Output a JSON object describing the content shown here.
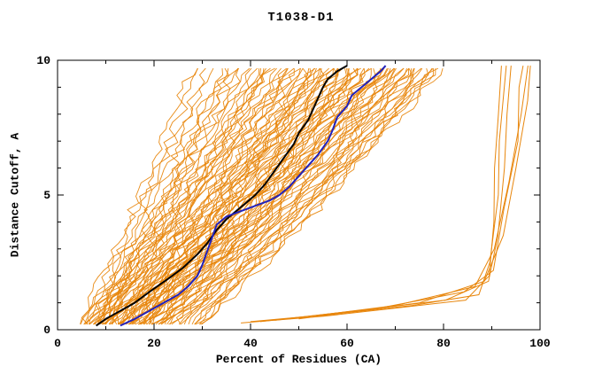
{
  "chart_data": {
    "type": "line",
    "title": "T1038-D1",
    "xlabel": "Percent of Residues (CA)",
    "ylabel": "Distance Cutoff, A",
    "xlim": [
      0,
      100
    ],
    "ylim": [
      0,
      10
    ],
    "x_major_ticks": [
      0,
      20,
      40,
      60,
      80,
      100
    ],
    "x_minor_step": 10,
    "y_major_ticks": [
      0,
      5,
      10
    ],
    "y_minor_step": 1,
    "grid": false,
    "legend": "none",
    "colors": {
      "ensemble": "#e8860c",
      "model_black": "#000000",
      "model_blue": "#2222bb"
    },
    "ensemble": {
      "name": "prediction-ensemble",
      "anchor_y": [
        0.2,
        2,
        4,
        6,
        8,
        9.8
      ],
      "curves": [
        [
          5,
          9.8,
          15.1,
          19.9,
          24.7,
          29
        ],
        [
          6,
          11.2,
          16.9,
          22.1,
          27.3,
          32
        ],
        [
          6,
          11.8,
          18.2,
          24,
          29.8,
          35
        ],
        [
          7,
          13.2,
          20,
          26.2,
          32.4,
          38
        ],
        [
          7,
          13.6,
          20.9,
          27.5,
          34.1,
          40
        ],
        [
          8,
          13.6,
          19.8,
          25.4,
          31,
          36
        ],
        [
          8,
          14.8,
          22.3,
          29.1,
          35.9,
          42
        ],
        [
          8,
          15.2,
          23.1,
          30.3,
          37.5,
          44
        ],
        [
          9,
          16.2,
          24.1,
          31.3,
          38.5,
          45
        ],
        [
          9,
          16.6,
          25,
          32.6,
          40.2,
          47
        ],
        [
          10,
          16.6,
          23.9,
          30.5,
          37.1,
          43
        ],
        [
          10,
          17.6,
          26,
          33.6,
          41.2,
          48
        ],
        [
          10,
          18,
          26.8,
          34.8,
          42.8,
          50
        ],
        [
          11,
          19.2,
          28.2,
          36.4,
          44.6,
          52
        ],
        [
          11,
          19.4,
          28.6,
          37,
          45.4,
          53
        ],
        [
          12,
          20.4,
          29.6,
          38,
          46.4,
          54
        ],
        [
          12,
          20.6,
          30.1,
          38.7,
          47.3,
          55
        ],
        [
          13,
          20.2,
          28.1,
          35.3,
          42.5,
          49
        ],
        [
          13,
          21.6,
          31.1,
          39.7,
          48.3,
          56
        ],
        [
          13,
          21.8,
          31.5,
          40.3,
          49.1,
          57
        ],
        [
          14,
          22.8,
          32.5,
          41.3,
          50.1,
          58
        ],
        [
          14,
          23,
          32.9,
          41.9,
          50.9,
          59
        ],
        [
          15,
          24,
          33.9,
          42.9,
          51.9,
          60
        ],
        [
          15,
          24.2,
          34.3,
          43.5,
          52.7,
          61
        ],
        [
          16,
          23.6,
          32,
          39.6,
          47.2,
          54
        ],
        [
          16,
          25.2,
          35.3,
          44.5,
          53.7,
          62
        ],
        [
          16,
          25.4,
          35.7,
          45.1,
          54.5,
          63
        ],
        [
          17,
          26.4,
          36.7,
          46.1,
          55.5,
          64
        ],
        [
          17,
          26.6,
          37.2,
          46.8,
          56.4,
          65
        ],
        [
          18,
          27.6,
          38.2,
          47.8,
          57.4,
          66
        ],
        [
          18,
          27.8,
          38.6,
          48.4,
          58.2,
          67
        ],
        [
          19,
          27.6,
          37.1,
          45.7,
          54.3,
          62
        ],
        [
          19,
          28.8,
          39.6,
          49.4,
          59.2,
          68
        ],
        [
          20,
          29.8,
          40.6,
          50.4,
          60.2,
          69
        ],
        [
          20,
          30,
          41,
          51,
          61,
          70
        ],
        [
          21,
          31,
          42,
          52,
          62,
          71
        ],
        [
          22,
          31.2,
          41.3,
          50.5,
          59.7,
          68
        ],
        [
          22,
          32,
          43,
          53,
          63,
          72
        ],
        [
          23,
          33,
          44,
          54,
          64,
          73
        ],
        [
          24,
          34,
          45,
          55,
          65,
          74
        ],
        [
          25,
          35,
          46,
          56,
          66,
          75
        ],
        [
          26,
          36,
          47,
          57,
          67,
          76
        ],
        [
          27,
          37,
          48,
          58,
          68,
          77
        ],
        [
          28,
          38,
          49,
          59,
          69,
          78
        ],
        [
          29,
          39,
          50,
          60,
          70,
          79
        ],
        [
          30,
          40,
          51,
          61,
          71,
          80
        ]
      ],
      "outlier_curves": [
        [
          [
            38,
            0.25
          ],
          [
            55,
            0.5
          ],
          [
            70,
            0.8
          ],
          [
            85,
            1.1
          ],
          [
            89,
            2
          ],
          [
            90,
            4
          ],
          [
            91,
            6
          ],
          [
            91.5,
            8
          ],
          [
            92,
            9.8
          ]
        ],
        [
          [
            40,
            0.3
          ],
          [
            58,
            0.6
          ],
          [
            74,
            0.9
          ],
          [
            87,
            1.3
          ],
          [
            90,
            2.5
          ],
          [
            91,
            5
          ],
          [
            92,
            7
          ],
          [
            93,
            9.8
          ]
        ],
        [
          [
            42,
            0.3
          ],
          [
            62,
            0.7
          ],
          [
            80,
            1.1
          ],
          [
            89,
            1.8
          ],
          [
            91,
            3.5
          ],
          [
            92.5,
            6
          ],
          [
            93.5,
            8
          ],
          [
            94,
            9.8
          ]
        ],
        [
          [
            45,
            0.35
          ],
          [
            66,
            0.8
          ],
          [
            84,
            1.4
          ],
          [
            90,
            2.2
          ],
          [
            93,
            4.5
          ],
          [
            95,
            7
          ],
          [
            96,
            9
          ],
          [
            96.5,
            9.8
          ]
        ],
        [
          [
            48,
            0.4
          ],
          [
            70,
            0.9
          ],
          [
            87,
            1.6
          ],
          [
            91,
            3
          ],
          [
            94,
            5.5
          ],
          [
            96,
            8
          ],
          [
            97.5,
            9.8
          ]
        ],
        [
          [
            50,
            0.4
          ],
          [
            75,
            1
          ],
          [
            88,
            1.8
          ],
          [
            92,
            3.5
          ],
          [
            95,
            6
          ],
          [
            97,
            8.5
          ],
          [
            98,
            9.8
          ]
        ]
      ]
    },
    "series": [
      {
        "name": "highlighted-model-black",
        "color": "#000000",
        "points": [
          [
            8,
            0.15
          ],
          [
            10,
            0.4
          ],
          [
            13,
            0.7
          ],
          [
            16,
            1.0
          ],
          [
            19,
            1.4
          ],
          [
            23,
            1.9
          ],
          [
            26,
            2.3
          ],
          [
            29,
            2.8
          ],
          [
            31,
            3.2
          ],
          [
            33,
            3.7
          ],
          [
            35,
            4.1
          ],
          [
            37,
            4.4
          ],
          [
            39,
            4.7
          ],
          [
            41,
            5.0
          ],
          [
            43,
            5.4
          ],
          [
            45,
            5.9
          ],
          [
            47,
            6.4
          ],
          [
            49,
            6.9
          ],
          [
            50,
            7.3
          ],
          [
            52,
            7.8
          ],
          [
            53,
            8.2
          ],
          [
            54,
            8.6
          ],
          [
            55,
            9.0
          ],
          [
            56,
            9.3
          ],
          [
            58,
            9.6
          ],
          [
            60,
            9.8
          ]
        ]
      },
      {
        "name": "highlighted-model-blue",
        "color": "#2222bb",
        "points": [
          [
            13,
            0.15
          ],
          [
            16,
            0.4
          ],
          [
            19,
            0.7
          ],
          [
            22,
            1.0
          ],
          [
            25,
            1.3
          ],
          [
            27,
            1.6
          ],
          [
            29,
            2.0
          ],
          [
            30,
            2.4
          ],
          [
            31,
            2.9
          ],
          [
            32,
            3.4
          ],
          [
            33,
            3.9
          ],
          [
            35,
            4.2
          ],
          [
            38,
            4.4
          ],
          [
            41,
            4.6
          ],
          [
            44,
            4.8
          ],
          [
            46,
            5.0
          ],
          [
            48,
            5.3
          ],
          [
            50,
            5.7
          ],
          [
            52,
            6.1
          ],
          [
            54,
            6.5
          ],
          [
            56,
            7.0
          ],
          [
            57,
            7.4
          ],
          [
            58,
            7.9
          ],
          [
            60,
            8.3
          ],
          [
            61,
            8.7
          ],
          [
            63,
            9.0
          ],
          [
            65,
            9.3
          ],
          [
            67,
            9.6
          ],
          [
            68,
            9.8
          ]
        ]
      }
    ]
  }
}
